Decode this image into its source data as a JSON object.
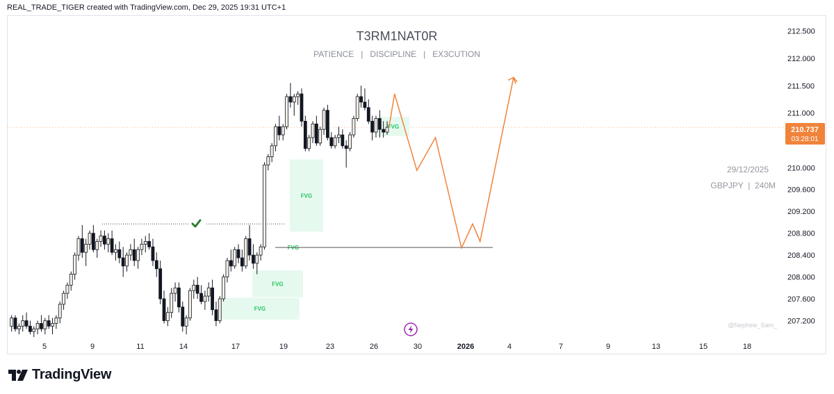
{
  "header": {
    "attribution": "REAL_TRADE_TIGER created with TradingView.com, Dec 29, 2025 19:31 UTC+1"
  },
  "watermark": {
    "title": "T3RM1NAT0R",
    "subtitle": "PATIENCE   |   DISCIPLINE   |   EX3CUTION",
    "date": "29/12/2025",
    "symbol": "GBPJPY  |  240M",
    "author": "@Nephew_Sam_"
  },
  "footer": {
    "brand": "TradingView"
  },
  "colors": {
    "bull": "#f5f0e6",
    "bear": "#131722",
    "fvg": "#e6f9ef",
    "fvg_text": "#22c55e",
    "projection": "#f0833a",
    "price_badge": "#f0833a",
    "check": "#2e7d32",
    "lightning": "#9c27b0"
  },
  "chart_data": {
    "type": "candlestick",
    "symbol": "GBPJPY",
    "timeframe": "240M",
    "y_ticks": [
      "212.500",
      "212.000",
      "211.500",
      "211.000",
      "210.000",
      "209.600",
      "209.200",
      "208.800",
      "208.400",
      "208.000",
      "207.600",
      "207.200"
    ],
    "x_ticks": [
      "5",
      "9",
      "11",
      "14",
      "17",
      "19",
      "23",
      "26",
      "30",
      "2026",
      "4",
      "7",
      "9",
      "13",
      "15",
      "18"
    ],
    "ylim": [
      206.85,
      212.75
    ],
    "current_price": {
      "price": "210.737",
      "countdown": "03:28:01"
    },
    "horizontal_level": 208.54,
    "liquidity_level": 208.97,
    "fvg_zones": [
      {
        "label": "FVG",
        "top": 210.15,
        "bottom": 208.83
      },
      {
        "label": "FVG",
        "top": 208.56,
        "bottom": 208.52
      },
      {
        "label": "FVG",
        "top": 208.12,
        "bottom": 207.63
      },
      {
        "label": "FVG",
        "top": 207.62,
        "bottom": 207.22
      },
      {
        "label": "FVG",
        "top": 210.93,
        "bottom": 210.58
      }
    ],
    "candles": [
      [
        207.1,
        207.3,
        207.0,
        207.25
      ],
      [
        207.25,
        207.3,
        207.0,
        207.05
      ],
      [
        207.05,
        207.15,
        206.95,
        207.1
      ],
      [
        207.1,
        207.3,
        207.0,
        207.2
      ],
      [
        207.2,
        207.35,
        207.05,
        207.1
      ],
      [
        207.1,
        207.2,
        206.95,
        207.0
      ],
      [
        207.0,
        207.1,
        206.9,
        207.05
      ],
      [
        207.05,
        207.2,
        206.95,
        207.15
      ],
      [
        207.15,
        207.3,
        207.0,
        207.05
      ],
      [
        207.05,
        207.25,
        206.95,
        207.2
      ],
      [
        207.2,
        207.3,
        207.05,
        207.1
      ],
      [
        207.1,
        207.25,
        206.95,
        207.15
      ],
      [
        207.15,
        207.3,
        207.05,
        207.25
      ],
      [
        207.25,
        207.55,
        207.15,
        207.5
      ],
      [
        207.5,
        207.75,
        207.4,
        207.7
      ],
      [
        207.7,
        207.9,
        207.6,
        207.85
      ],
      [
        207.85,
        208.1,
        207.75,
        208.05
      ],
      [
        208.05,
        208.45,
        207.95,
        208.4
      ],
      [
        208.4,
        208.75,
        208.3,
        208.7
      ],
      [
        208.7,
        208.95,
        208.35,
        208.45
      ],
      [
        208.45,
        208.7,
        208.2,
        208.6
      ],
      [
        208.6,
        208.85,
        208.5,
        208.8
      ],
      [
        208.8,
        208.95,
        208.45,
        208.5
      ],
      [
        208.5,
        208.7,
        208.35,
        208.65
      ],
      [
        208.65,
        208.85,
        208.55,
        208.75
      ],
      [
        208.75,
        208.85,
        208.5,
        208.6
      ],
      [
        208.6,
        208.8,
        208.45,
        208.7
      ],
      [
        208.7,
        208.85,
        208.4,
        208.45
      ],
      [
        208.45,
        208.6,
        208.3,
        208.5
      ],
      [
        208.5,
        208.65,
        208.25,
        208.35
      ],
      [
        208.35,
        208.55,
        208.0,
        208.2
      ],
      [
        208.2,
        208.45,
        208.1,
        208.4
      ],
      [
        208.4,
        208.6,
        208.3,
        208.5
      ],
      [
        208.5,
        208.7,
        208.2,
        208.3
      ],
      [
        208.3,
        208.55,
        208.15,
        208.5
      ],
      [
        208.5,
        208.7,
        208.4,
        208.6
      ],
      [
        208.6,
        208.75,
        208.45,
        208.65
      ],
      [
        208.65,
        208.8,
        208.5,
        208.55
      ],
      [
        208.55,
        208.7,
        208.2,
        208.3
      ],
      [
        208.3,
        208.45,
        208.0,
        208.15
      ],
      [
        208.15,
        208.3,
        207.5,
        207.6
      ],
      [
        207.6,
        207.75,
        207.15,
        207.2
      ],
      [
        207.2,
        207.45,
        207.1,
        207.35
      ],
      [
        207.35,
        207.8,
        207.25,
        207.7
      ],
      [
        207.7,
        207.9,
        207.55,
        207.8
      ],
      [
        207.8,
        207.9,
        207.35,
        207.45
      ],
      [
        207.45,
        207.55,
        207.0,
        207.1
      ],
      [
        207.1,
        207.3,
        206.95,
        207.25
      ],
      [
        207.25,
        207.8,
        207.2,
        207.75
      ],
      [
        207.75,
        207.95,
        207.6,
        207.85
      ],
      [
        207.85,
        208.0,
        207.6,
        207.7
      ],
      [
        207.7,
        207.85,
        207.5,
        207.55
      ],
      [
        207.55,
        207.75,
        207.4,
        207.65
      ],
      [
        207.65,
        207.9,
        207.55,
        207.8
      ],
      [
        207.8,
        207.95,
        207.3,
        207.4
      ],
      [
        207.4,
        207.55,
        207.1,
        207.2
      ],
      [
        207.2,
        207.65,
        207.15,
        207.6
      ],
      [
        207.6,
        208.05,
        207.55,
        208.0
      ],
      [
        208.0,
        208.35,
        207.9,
        208.3
      ],
      [
        208.3,
        208.5,
        208.1,
        208.2
      ],
      [
        208.2,
        208.55,
        208.15,
        208.5
      ],
      [
        208.5,
        208.6,
        208.25,
        208.35
      ],
      [
        208.35,
        208.5,
        208.1,
        208.2
      ],
      [
        208.2,
        208.75,
        208.15,
        208.7
      ],
      [
        208.7,
        208.95,
        208.3,
        208.4
      ],
      [
        208.4,
        208.6,
        208.15,
        208.25
      ],
      [
        208.25,
        208.45,
        208.05,
        208.4
      ],
      [
        208.4,
        208.6,
        208.3,
        208.55
      ],
      [
        208.55,
        210.1,
        208.5,
        210.05
      ],
      [
        210.05,
        210.25,
        209.95,
        210.2
      ],
      [
        210.2,
        210.45,
        210.1,
        210.4
      ],
      [
        210.4,
        210.8,
        210.3,
        210.75
      ],
      [
        210.75,
        210.95,
        210.5,
        210.6
      ],
      [
        210.6,
        210.8,
        210.5,
        210.75
      ],
      [
        210.75,
        211.35,
        210.7,
        211.3
      ],
      [
        211.3,
        211.55,
        211.1,
        211.2
      ],
      [
        211.2,
        211.35,
        210.95,
        211.3
      ],
      [
        211.3,
        211.4,
        211.15,
        211.35
      ],
      [
        211.35,
        211.45,
        210.75,
        210.85
      ],
      [
        210.85,
        210.95,
        210.3,
        210.35
      ],
      [
        210.35,
        210.6,
        210.3,
        210.55
      ],
      [
        210.55,
        210.85,
        210.45,
        210.8
      ],
      [
        210.8,
        210.95,
        210.4,
        210.45
      ],
      [
        210.45,
        210.75,
        210.4,
        210.7
      ],
      [
        210.7,
        211.1,
        210.6,
        211.05
      ],
      [
        211.05,
        211.15,
        210.5,
        210.55
      ],
      [
        210.55,
        210.65,
        210.35,
        210.4
      ],
      [
        210.4,
        210.6,
        210.35,
        210.55
      ],
      [
        210.55,
        210.75,
        210.45,
        210.6
      ],
      [
        210.6,
        210.7,
        210.35,
        210.4
      ],
      [
        210.4,
        210.5,
        210.0,
        210.35
      ],
      [
        210.35,
        210.65,
        210.3,
        210.6
      ],
      [
        210.6,
        210.95,
        210.55,
        210.9
      ],
      [
        210.9,
        211.35,
        210.85,
        211.3
      ],
      [
        211.3,
        211.5,
        211.1,
        211.2
      ],
      [
        211.2,
        211.45,
        211.05,
        211.1
      ],
      [
        211.1,
        211.25,
        210.8,
        210.85
      ],
      [
        210.85,
        210.95,
        210.5,
        210.65
      ],
      [
        210.65,
        210.95,
        210.55,
        210.9
      ],
      [
        210.9,
        211.05,
        210.55,
        210.7
      ],
      [
        210.7,
        210.85,
        210.55,
        210.65
      ],
      [
        210.65,
        210.85,
        210.6,
        210.74
      ]
    ],
    "projection": [
      [
        101.5,
        210.74
      ],
      [
        103,
        211.35
      ],
      [
        109,
        209.95
      ],
      [
        114,
        210.55
      ],
      [
        121,
        208.53
      ],
      [
        124,
        208.97
      ],
      [
        126,
        208.65
      ],
      [
        135,
        211.65
      ],
      [
        136,
        211.57
      ]
    ]
  }
}
